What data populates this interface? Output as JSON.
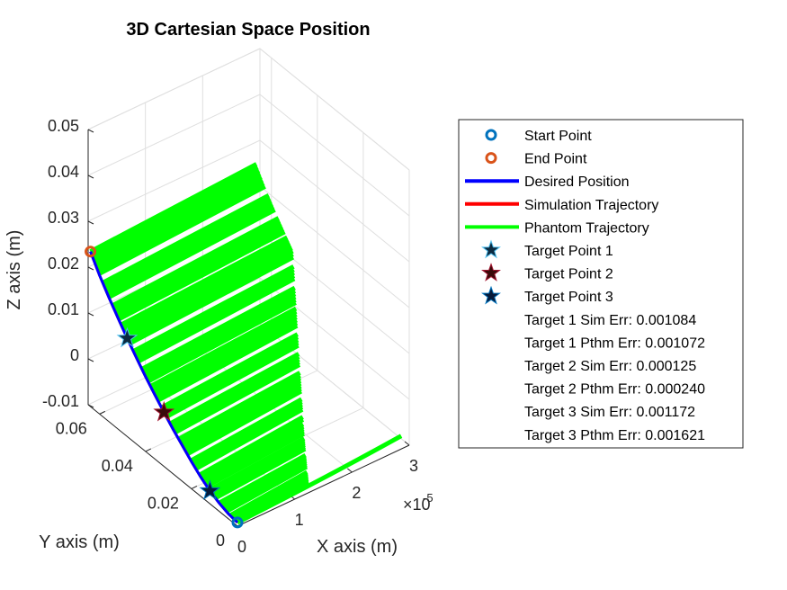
{
  "chart_data": {
    "type": "line",
    "view": "3d",
    "title": "3D Cartesian Space Position",
    "xlabel": "X axis (m)",
    "ylabel": "Y axis (m)",
    "zlabel": "Z axis (m)",
    "xlim": [
      0,
      3e-05
    ],
    "ylim": [
      0,
      0.065
    ],
    "zlim": [
      -0.01,
      0.05
    ],
    "x_ticks": [
      "0",
      "1",
      "2",
      "3"
    ],
    "x_exponent_base": "×10",
    "x_exponent_power": "-5",
    "y_ticks": [
      "0",
      "0.02",
      "0.04",
      "0.06"
    ],
    "z_ticks": [
      "-0.01",
      "0",
      "0.01",
      "0.02",
      "0.03",
      "0.04",
      "0.05"
    ],
    "grid": true,
    "legend_position": "right",
    "colors": {
      "start": "#0072BD",
      "end": "#D95319",
      "desired": "#0000FF",
      "simulation": "#FF0000",
      "phantom": "#00FF00",
      "target1_fill": "#0B2A40",
      "target2_fill": "#3A0A0A",
      "target3_fill": "#061A3A"
    },
    "desired_path": [
      {
        "y": 0.0,
        "z": -0.0092
      },
      {
        "y": 0.004,
        "z": -0.0089
      },
      {
        "y": 0.008,
        "z": -0.0082
      },
      {
        "y": 0.012,
        "z": -0.0072
      },
      {
        "y": 0.016,
        "z": -0.0058
      },
      {
        "y": 0.02,
        "z": -0.0041
      },
      {
        "y": 0.024,
        "z": -0.0022
      },
      {
        "y": 0.028,
        "z": -0.0003
      },
      {
        "y": 0.032,
        "z": 0.0018
      },
      {
        "y": 0.036,
        "z": 0.004
      },
      {
        "y": 0.04,
        "z": 0.0063
      },
      {
        "y": 0.044,
        "z": 0.0088
      },
      {
        "y": 0.048,
        "z": 0.0114
      },
      {
        "y": 0.052,
        "z": 0.0142
      },
      {
        "y": 0.056,
        "z": 0.0171
      },
      {
        "y": 0.06,
        "z": 0.0202
      },
      {
        "y": 0.064,
        "z": 0.0238
      }
    ],
    "phantom_x_max": 2.9e-05,
    "phantom_x_first": 1.2e-05,
    "start_point": {
      "x": 0.0,
      "y": 0.0,
      "z": -0.0092
    },
    "end_point": {
      "x": 0.0,
      "y": 0.064,
      "z": 0.0238
    },
    "target_points": [
      {
        "x": 0.0,
        "y": 0.048,
        "z": 0.0114
      },
      {
        "x": 0.0,
        "y": 0.032,
        "z": 0.0018
      },
      {
        "x": 0.0,
        "y": 0.012,
        "z": -0.0072
      }
    ],
    "legend": [
      {
        "label": "Start Point",
        "marker": "circle",
        "color": "#0072BD"
      },
      {
        "label": "End Point",
        "marker": "circle",
        "color": "#D95319"
      },
      {
        "label": "Desired Position",
        "marker": "line",
        "color": "#0000FF"
      },
      {
        "label": "Simulation Trajectory",
        "marker": "line",
        "color": "#FF0000"
      },
      {
        "label": "Phantom Trajectory",
        "marker": "line",
        "color": "#00FF00"
      },
      {
        "label": "Target Point 1",
        "marker": "star",
        "color": "#0B2A40",
        "edge": "#4DBEEE"
      },
      {
        "label": "Target Point 2",
        "marker": "star",
        "color": "#3A0A0A",
        "edge": "#A2142F"
      },
      {
        "label": "Target Point 3",
        "marker": "star",
        "color": "#061A3A",
        "edge": "#0072BD"
      },
      {
        "label": "Target 1 Sim Err: 0.001084",
        "marker": "none"
      },
      {
        "label": "Target 1 Pthm Err: 0.001072",
        "marker": "none"
      },
      {
        "label": "Target 2 Sim Err: 0.000125",
        "marker": "none"
      },
      {
        "label": "Target 2 Pthm Err: 0.000240",
        "marker": "none"
      },
      {
        "label": "Target 3 Sim Err: 0.001172",
        "marker": "none"
      },
      {
        "label": "Target 3 Pthm Err: 0.001621",
        "marker": "none"
      }
    ]
  }
}
